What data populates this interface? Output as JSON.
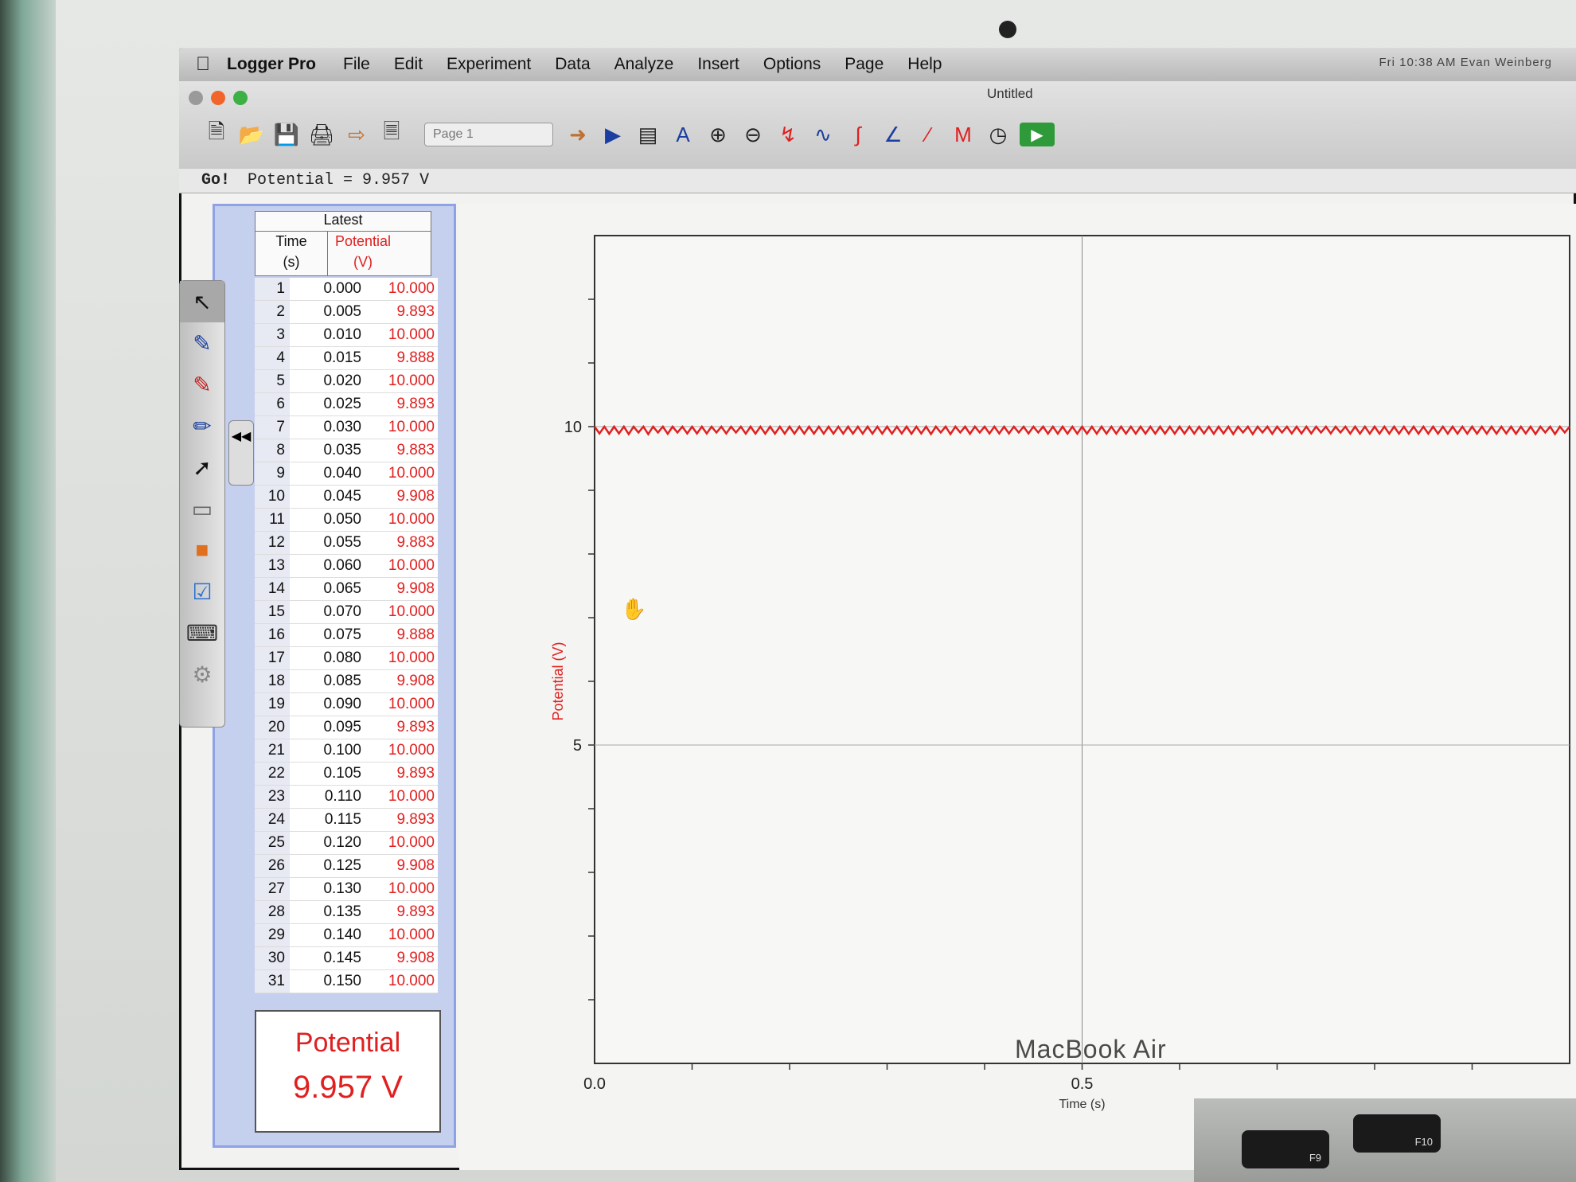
{
  "menubar": {
    "app_name": "Logger Pro",
    "items": [
      "File",
      "Edit",
      "Experiment",
      "Data",
      "Analyze",
      "Insert",
      "Options",
      "Page",
      "Help"
    ],
    "status_text": "Fri 10:38 AM   Evan Weinberg"
  },
  "window": {
    "title": "Untitled",
    "page_select": "Page 1"
  },
  "toolbar_icons": [
    "new-file-icon",
    "open-folder-icon",
    "save-icon",
    "print-icon",
    "import-icon",
    "export-icon",
    "page-select",
    "next-page-icon",
    "data-table-icon",
    "calculator-icon",
    "autoscale-icon",
    "zoom-in-icon",
    "zoom-out-icon",
    "examine-icon",
    "tangent-icon",
    "integral-icon",
    "statistics-icon",
    "linear-fit-icon",
    "curve-fit-icon",
    "timer-icon",
    "collect-icon"
  ],
  "status_line": {
    "go_label": "Go!",
    "text": "Potential = 9.957 V"
  },
  "table": {
    "group_title": "Latest",
    "col_time": "Time",
    "col_time_unit": "(s)",
    "col_potential": "Potential",
    "col_potential_unit": "(V)",
    "rows": [
      {
        "i": "1",
        "t": "0.000",
        "v": "10.000"
      },
      {
        "i": "2",
        "t": "0.005",
        "v": "9.893"
      },
      {
        "i": "3",
        "t": "0.010",
        "v": "10.000"
      },
      {
        "i": "4",
        "t": "0.015",
        "v": "9.888"
      },
      {
        "i": "5",
        "t": "0.020",
        "v": "10.000"
      },
      {
        "i": "6",
        "t": "0.025",
        "v": "9.893"
      },
      {
        "i": "7",
        "t": "0.030",
        "v": "10.000"
      },
      {
        "i": "8",
        "t": "0.035",
        "v": "9.883"
      },
      {
        "i": "9",
        "t": "0.040",
        "v": "10.000"
      },
      {
        "i": "10",
        "t": "0.045",
        "v": "9.908"
      },
      {
        "i": "11",
        "t": "0.050",
        "v": "10.000"
      },
      {
        "i": "12",
        "t": "0.055",
        "v": "9.883"
      },
      {
        "i": "13",
        "t": "0.060",
        "v": "10.000"
      },
      {
        "i": "14",
        "t": "0.065",
        "v": "9.908"
      },
      {
        "i": "15",
        "t": "0.070",
        "v": "10.000"
      },
      {
        "i": "16",
        "t": "0.075",
        "v": "9.888"
      },
      {
        "i": "17",
        "t": "0.080",
        "v": "10.000"
      },
      {
        "i": "18",
        "t": "0.085",
        "v": "9.908"
      },
      {
        "i": "19",
        "t": "0.090",
        "v": "10.000"
      },
      {
        "i": "20",
        "t": "0.095",
        "v": "9.893"
      },
      {
        "i": "21",
        "t": "0.100",
        "v": "10.000"
      },
      {
        "i": "22",
        "t": "0.105",
        "v": "9.893"
      },
      {
        "i": "23",
        "t": "0.110",
        "v": "10.000"
      },
      {
        "i": "24",
        "t": "0.115",
        "v": "9.893"
      },
      {
        "i": "25",
        "t": "0.120",
        "v": "10.000"
      },
      {
        "i": "26",
        "t": "0.125",
        "v": "9.908"
      },
      {
        "i": "27",
        "t": "0.130",
        "v": "10.000"
      },
      {
        "i": "28",
        "t": "0.135",
        "v": "9.893"
      },
      {
        "i": "29",
        "t": "0.140",
        "v": "10.000"
      },
      {
        "i": "30",
        "t": "0.145",
        "v": "9.908"
      },
      {
        "i": "31",
        "t": "0.150",
        "v": "10.000"
      }
    ]
  },
  "meter": {
    "label": "Potential",
    "value": "9.957 V"
  },
  "tools": [
    "arrow-pointer-icon",
    "pen-icon",
    "highlighter-icon",
    "marker-icon",
    "line-tool-icon",
    "eraser-icon",
    "shapes-icon",
    "text-box-icon",
    "keyboard-icon",
    "settings-icon"
  ],
  "graph": {
    "x_axis_title": "Time (s)",
    "y_axis_title": "Potential (V)",
    "x_ticks": [
      "0.0",
      "0.5"
    ],
    "y_ticks": [
      "5",
      "10"
    ],
    "x_range": [
      0,
      1.0
    ],
    "y_range": [
      0,
      13
    ],
    "series_color": "#e02020"
  },
  "device": {
    "brand": "MacBook Air",
    "keys": [
      "F9",
      "F10"
    ]
  }
}
